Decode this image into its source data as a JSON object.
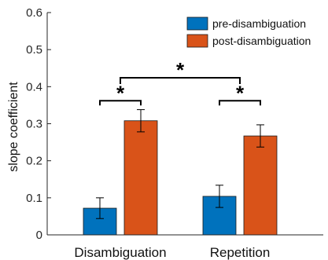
{
  "chart_data": {
    "type": "bar",
    "title": "",
    "xlabel": "",
    "ylabel": "slope coefficient",
    "ylim": [
      0,
      0.6
    ],
    "yticks": [
      "0",
      "0.1",
      "0.2",
      "0.3",
      "0.4",
      "0.5",
      "0.6"
    ],
    "categories": [
      "Disambiguation",
      "Repetition"
    ],
    "series": [
      {
        "name": "pre-disambiguation",
        "color": "#0072BD",
        "values": [
          0.072,
          0.104
        ],
        "errors": [
          0.028,
          0.03
        ]
      },
      {
        "name": "post-disambiguation",
        "color": "#D95319",
        "values": [
          0.308,
          0.267
        ],
        "errors": [
          0.03,
          0.03
        ]
      }
    ],
    "legend_position": "top-right",
    "grid": false,
    "significance": [
      {
        "label": "*",
        "between": "pre-disambiguation vs post-disambiguation",
        "category": "Disambiguation"
      },
      {
        "label": "*",
        "between": "pre-disambiguation vs post-disambiguation",
        "category": "Repetition"
      },
      {
        "label": "*",
        "between": "Disambiguation vs Repetition"
      }
    ]
  }
}
